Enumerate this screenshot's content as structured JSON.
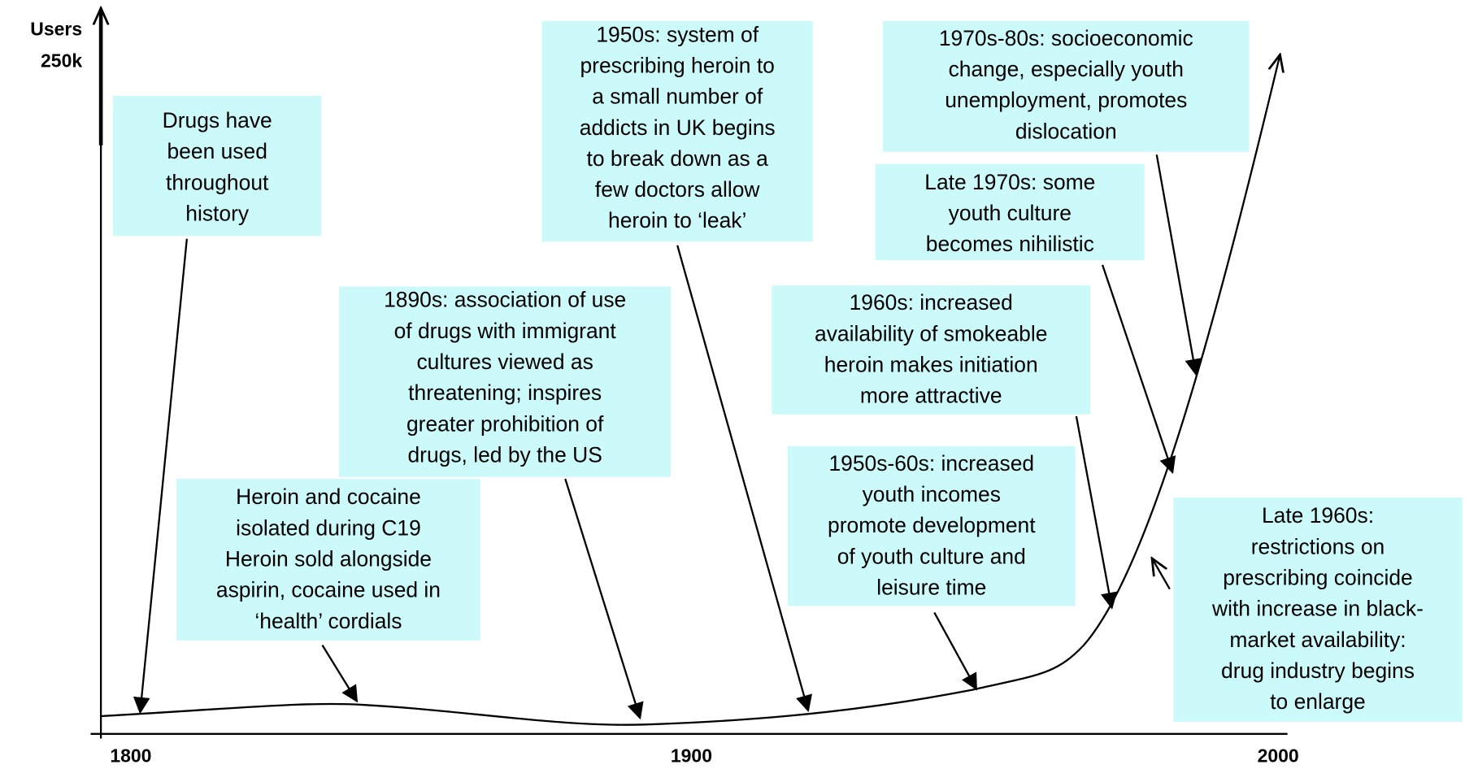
{
  "axes": {
    "y_label": "Users",
    "y_max_label": "250k",
    "x_ticks": [
      "1800",
      "1900",
      "2000"
    ]
  },
  "annotations": [
    {
      "lines": [
        "Drugs have",
        "been used",
        "throughout",
        "history"
      ]
    },
    {
      "lines": [
        "Heroin and cocaine",
        "isolated during C19",
        "Heroin sold alongside",
        "aspirin, cocaine used in",
        "‘health’ cordials"
      ]
    },
    {
      "lines": [
        "1890s: association of use",
        "of drugs with immigrant",
        "cultures viewed as",
        "threatening; inspires",
        "greater prohibition of",
        "drugs, led by the US"
      ]
    },
    {
      "lines": [
        "1950s: system of",
        "prescribing heroin to",
        "a small number of",
        "addicts in UK begins",
        "to break down as a",
        "few doctors allow",
        "heroin to ‘leak’"
      ]
    },
    {
      "lines": [
        "1970s-80s: socioeconomic",
        "change, especially youth",
        "unemployment, promotes",
        "dislocation"
      ]
    },
    {
      "lines": [
        "Late 1970s: some",
        "youth culture",
        "becomes nihilistic"
      ]
    },
    {
      "lines": [
        "1960s: increased",
        "availability of smokeable",
        "heroin makes initiation",
        "more attractive"
      ]
    },
    {
      "lines": [
        "1950s-60s: increased",
        "youth incomes",
        "promote development",
        "of youth culture and",
        "leisure time"
      ]
    },
    {
      "lines": [
        "Late 1960s:",
        "restrictions on",
        "prescribing coincide",
        "with increase in black-",
        "market availability:",
        "drug industry begins",
        "to enlarge"
      ]
    }
  ]
}
